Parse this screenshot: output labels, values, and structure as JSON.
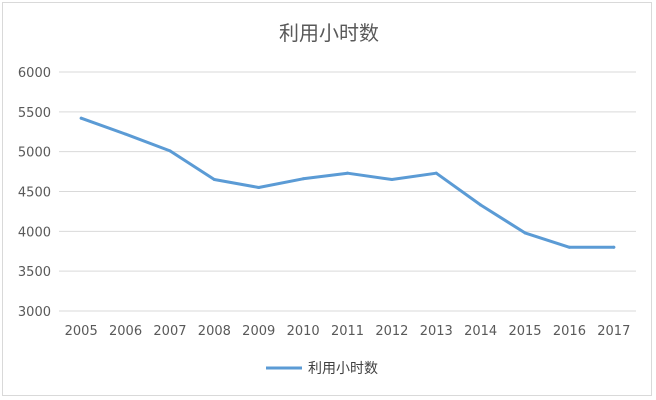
{
  "chart_data": {
    "type": "line",
    "title": "利用小时数",
    "xlabel": "",
    "ylabel": "",
    "categories": [
      "2005",
      "2006",
      "2007",
      "2008",
      "2009",
      "2010",
      "2011",
      "2012",
      "2013",
      "2014",
      "2015",
      "2016",
      "2017"
    ],
    "series": [
      {
        "name": "利用小时数",
        "color": "#5b9bd5",
        "values": [
          5420,
          5220,
          5010,
          4650,
          4550,
          4660,
          4730,
          4650,
          4730,
          4330,
          3980,
          3800,
          3800
        ]
      }
    ],
    "ylim": [
      3000,
      6000
    ],
    "yticks": [
      "3000",
      "3500",
      "4000",
      "4500",
      "5000",
      "5500",
      "6000"
    ],
    "grid": true,
    "legend": "bottom"
  }
}
